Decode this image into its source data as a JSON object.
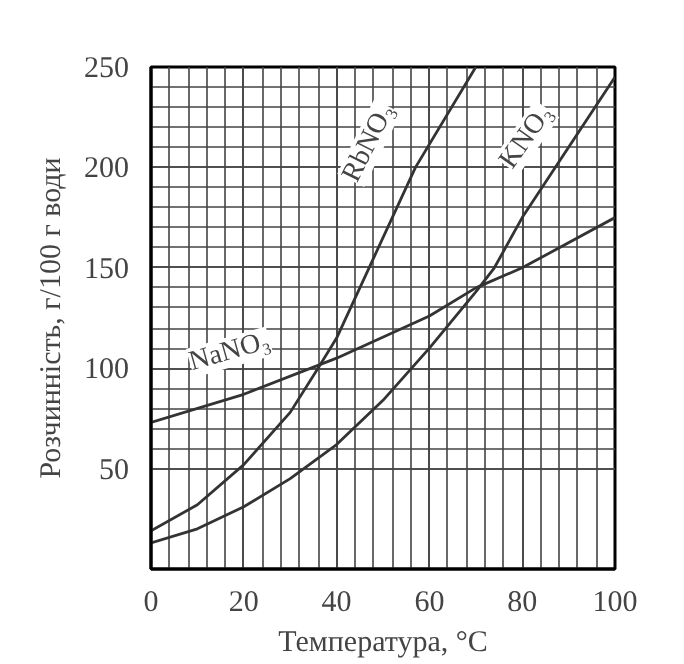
{
  "chart_data": {
    "type": "line",
    "xlabel": "Температура, °C",
    "ylabel": "Розчинність, г/100 г води",
    "xlim": [
      0,
      100
    ],
    "ylim": [
      0,
      250
    ],
    "xticks": [
      0,
      20,
      40,
      60,
      80,
      100
    ],
    "yticks": [
      50,
      100,
      150,
      200,
      250
    ],
    "grid": true,
    "marker": "none",
    "line_style": "solid",
    "series": [
      {
        "color": "#333333",
        "x": [
          0,
          10,
          20,
          30,
          36,
          40,
          47,
          57,
          70
        ],
        "values": [
          19,
          32,
          52,
          78,
          100,
          115,
          150,
          200,
          250
        ]
      },
      {
        "color": "#333333",
        "x": [
          0,
          10,
          20,
          30,
          40,
          50,
          60,
          70,
          74,
          80,
          90,
          100
        ],
        "values": [
          13,
          20,
          31,
          45,
          62,
          84,
          110,
          138,
          150,
          175,
          210,
          245
        ]
      },
      {
        "color": "#333333",
        "x": [
          0,
          20,
          40,
          60,
          70,
          80,
          100
        ],
        "values": [
          73,
          87,
          105,
          126,
          140,
          150,
          175
        ]
      }
    ],
    "annotations": [
      {
        "text": "RbNO₃",
        "x": 47,
        "y": 212
      },
      {
        "text": "KNO₃",
        "x": 81,
        "y": 215
      },
      {
        "text": "NaNO₃",
        "x": 17,
        "y": 108
      }
    ]
  }
}
